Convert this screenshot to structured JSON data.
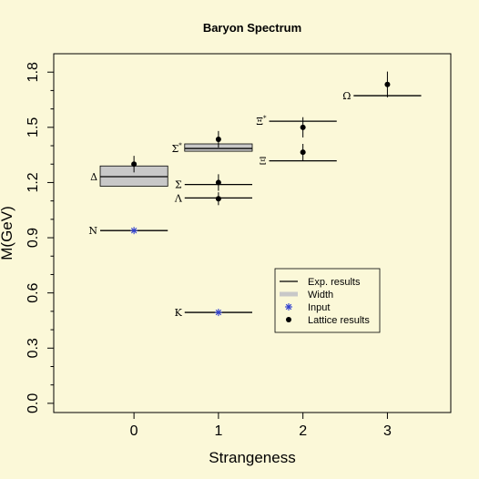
{
  "chart_data": {
    "type": "scatter",
    "title": "Baryon Spectrum",
    "xlabel": "Strangeness",
    "ylabel": "M(GeV)",
    "xlim": [
      -0.95,
      3.75
    ],
    "ylim": [
      -0.05,
      1.9
    ],
    "x_ticks": [
      "0",
      "1",
      "2",
      "3"
    ],
    "y_ticks": [
      "0.0",
      "0.3",
      "0.6",
      "0.9",
      "1.2",
      "1.5",
      "1.8"
    ],
    "grid": false,
    "legend_position": "lower-right",
    "legend": [
      {
        "label": "Exp. results",
        "symbol": "line"
      },
      {
        "label": "Width",
        "symbol": "band"
      },
      {
        "label": "Input",
        "symbol": "asterisk"
      },
      {
        "label": "Lattice results",
        "symbol": "dot"
      }
    ],
    "experimental": [
      {
        "label": "N",
        "strangeness": 0,
        "mass": 0.939
      },
      {
        "label": "Δ",
        "strangeness": 0,
        "mass": 1.232,
        "width_band": [
          1.18,
          1.29
        ]
      },
      {
        "label": "K",
        "strangeness": 1,
        "mass": 0.494
      },
      {
        "label": "Λ",
        "strangeness": 1,
        "mass": 1.116
      },
      {
        "label": "Σ",
        "strangeness": 1,
        "mass": 1.189
      },
      {
        "label": "Σ*",
        "strangeness": 1,
        "mass": 1.385,
        "width_band": [
          1.37,
          1.41
        ]
      },
      {
        "label": "Ξ",
        "strangeness": 2,
        "mass": 1.318
      },
      {
        "label": "Ξ*",
        "strangeness": 2,
        "mass": 1.533
      },
      {
        "label": "Ω",
        "strangeness": 3,
        "mass": 1.672
      }
    ],
    "input": [
      {
        "strangeness": 0,
        "mass": 0.939
      },
      {
        "strangeness": 1,
        "mass": 0.494
      }
    ],
    "lattice": [
      {
        "strangeness": 0,
        "mass": 1.3,
        "err": 0.045
      },
      {
        "strangeness": 1,
        "mass": 1.112,
        "err": 0.035
      },
      {
        "strangeness": 1,
        "mass": 1.2,
        "err": 0.045
      },
      {
        "strangeness": 1,
        "mass": 1.435,
        "err": 0.045
      },
      {
        "strangeness": 2,
        "mass": 1.365,
        "err": 0.045
      },
      {
        "strangeness": 2,
        "mass": 1.5,
        "err": 0.055
      },
      {
        "strangeness": 3,
        "mass": 1.733,
        "err": 0.07
      }
    ]
  }
}
